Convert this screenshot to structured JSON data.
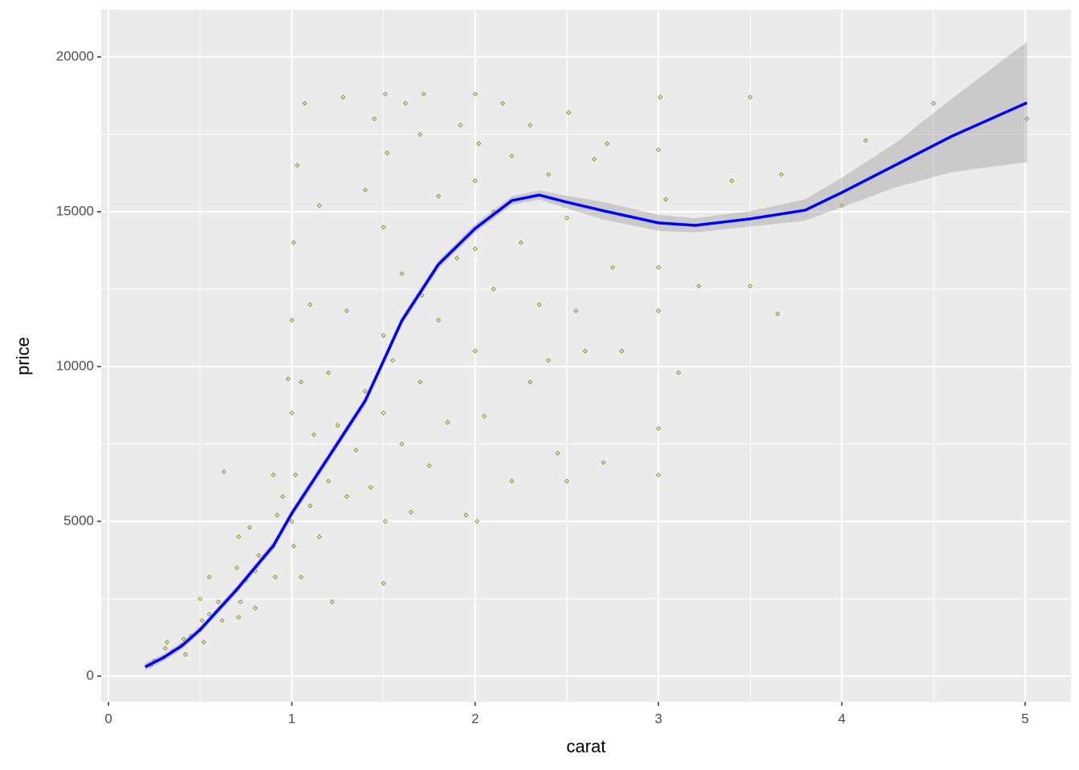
{
  "chart_data": {
    "type": "scatter",
    "x_label": "carat",
    "y_label": "price",
    "xlim": [
      -0.04,
      5.25
    ],
    "ylim": [
      -829,
      21528
    ],
    "xticks": [
      0,
      1,
      2,
      3,
      4,
      5
    ],
    "yticks": [
      0,
      5000,
      10000,
      15000,
      20000
    ],
    "x_minor_breaks": [
      0.5,
      1.5,
      2.5,
      3.5,
      4.5
    ],
    "y_minor_breaks": [
      2500,
      7500,
      12500,
      17500
    ],
    "grid": true,
    "point_color": "#8b7500",
    "x": [
      0.23,
      0.25,
      0.3,
      0.31,
      0.32,
      0.35,
      0.4,
      0.41,
      0.42,
      0.45,
      0.5,
      0.5,
      0.51,
      0.52,
      0.55,
      0.55,
      0.6,
      0.62,
      0.63,
      0.7,
      0.7,
      0.71,
      0.71,
      0.72,
      0.75,
      0.77,
      0.8,
      0.8,
      0.82,
      0.9,
      0.9,
      0.91,
      0.92,
      0.95,
      0.98,
      1.0,
      1.0,
      1.0,
      1.01,
      1.01,
      1.02,
      1.03,
      1.05,
      1.05,
      1.07,
      1.1,
      1.1,
      1.12,
      1.15,
      1.15,
      1.2,
      1.2,
      1.22,
      1.25,
      1.28,
      1.3,
      1.3,
      1.35,
      1.4,
      1.4,
      1.43,
      1.45,
      1.5,
      1.5,
      1.5,
      1.5,
      1.51,
      1.51,
      1.52,
      1.55,
      1.6,
      1.6,
      1.62,
      1.65,
      1.7,
      1.7,
      1.71,
      1.72,
      1.75,
      1.8,
      1.8,
      1.85,
      1.9,
      1.92,
      1.95,
      2.0,
      2.0,
      2.0,
      2.0,
      2.01,
      2.02,
      2.05,
      2.1,
      2.1,
      2.15,
      2.2,
      2.2,
      2.25,
      2.3,
      2.3,
      2.35,
      2.4,
      2.4,
      2.45,
      2.5,
      2.5,
      2.51,
      2.55,
      2.6,
      2.65,
      2.7,
      2.72,
      2.75,
      2.8,
      3.0,
      3.0,
      3.0,
      3.0,
      3.0,
      3.01,
      3.04,
      3.11,
      3.22,
      3.4,
      3.5,
      3.5,
      3.65,
      3.67,
      4.0,
      4.13,
      4.5,
      5.01
    ],
    "y": [
      350,
      500,
      600,
      900,
      1100,
      800,
      1000,
      1200,
      700,
      1300,
      1500,
      2500,
      1800,
      1100,
      2000,
      3200,
      2400,
      1800,
      6600,
      2800,
      3500,
      4500,
      1900,
      2400,
      3100,
      4800,
      3400,
      2200,
      3900,
      4200,
      6500,
      3200,
      5200,
      5800,
      9600,
      5000,
      8500,
      11500,
      4200,
      14000,
      6500,
      16500,
      3200,
      9500,
      18500,
      5500,
      12000,
      7800,
      4500,
      15200,
      6300,
      9800,
      2400,
      8100,
      18700,
      5800,
      11800,
      7300,
      15700,
      9200,
      6100,
      18000,
      3000,
      8500,
      11000,
      14500,
      18800,
      5000,
      16900,
      10200,
      7500,
      13000,
      18500,
      5300,
      9500,
      17500,
      12300,
      18800,
      6800,
      11500,
      15500,
      8200,
      13500,
      17800,
      5200,
      10500,
      13800,
      16000,
      18800,
      5000,
      17200,
      8400,
      15000,
      12500,
      18500,
      6300,
      16800,
      14000,
      9500,
      17800,
      12000,
      16200,
      10200,
      7200,
      14800,
      6300,
      18200,
      11800,
      10500,
      16700,
      6900,
      17200,
      13200,
      10500,
      6500,
      8000,
      11800,
      13200,
      17000,
      18700,
      15400,
      9800,
      12600,
      16000,
      18700,
      12600,
      11700,
      16200,
      15200,
      17300,
      18500,
      18000
    ],
    "smooth": {
      "color": "#0000ff",
      "fill": "#999999",
      "x": [
        0.2,
        0.3,
        0.4,
        0.5,
        0.7,
        0.9,
        1.0,
        1.2,
        1.4,
        1.5,
        1.6,
        1.8,
        2.0,
        2.2,
        2.35,
        2.5,
        2.7,
        3.0,
        3.2,
        3.5,
        3.8,
        4.0,
        4.3,
        4.6,
        5.01
      ],
      "y": [
        300,
        600,
        980,
        1500,
        2800,
        4220,
        5260,
        7070,
        8890,
        10180,
        11480,
        13300,
        14460,
        15360,
        15540,
        15310,
        15030,
        14640,
        14560,
        14770,
        15050,
        15620,
        16530,
        17440,
        18520
      ],
      "lower": [
        180,
        480,
        860,
        1380,
        2680,
        4080,
        5120,
        6930,
        8750,
        10040,
        11340,
        13160,
        14320,
        15220,
        15390,
        15110,
        14750,
        14380,
        14330,
        14520,
        14710,
        15150,
        15800,
        16280,
        16600
      ],
      "upper": [
        420,
        720,
        1100,
        1620,
        2920,
        4360,
        5400,
        7210,
        9030,
        10320,
        11620,
        13440,
        14600,
        15500,
        15690,
        15510,
        15320,
        14900,
        14790,
        15020,
        15400,
        16100,
        17250,
        18650,
        20490
      ]
    }
  }
}
